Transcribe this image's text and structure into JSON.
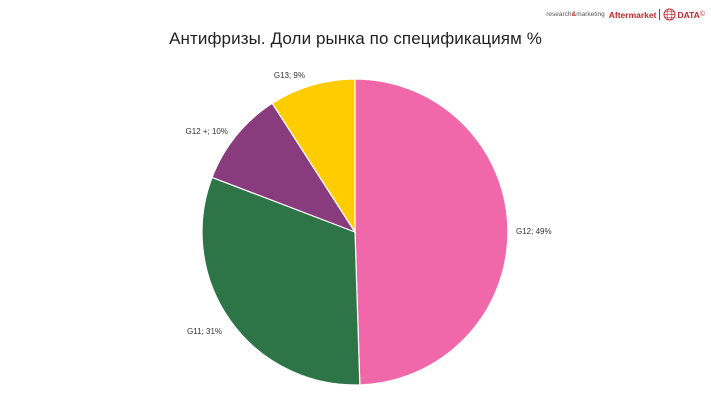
{
  "brand": {
    "research": "research",
    "amp": "&",
    "marketing": "marketing",
    "name": "Aftermarket",
    "data": "DATA",
    "copyright": "©",
    "color": "#c0262b"
  },
  "chart_data": {
    "type": "pie",
    "title": "Антифризы. Доли рынка по спецификациям %",
    "start_angle_deg": 0,
    "direction": "clockwise",
    "slices": [
      {
        "name": "G12",
        "value": 49,
        "label": "G12; 49%",
        "color": "#f067aa"
      },
      {
        "name": "G11",
        "value": 31,
        "label": "G11; 31%",
        "color": "#2d7546"
      },
      {
        "name": "G12 +",
        "value": 10,
        "label": "G12 +; 10%",
        "color": "#883b7d"
      },
      {
        "name": "G13",
        "value": 9,
        "label": "G13; 9%",
        "color": "#ffcc00"
      }
    ]
  }
}
